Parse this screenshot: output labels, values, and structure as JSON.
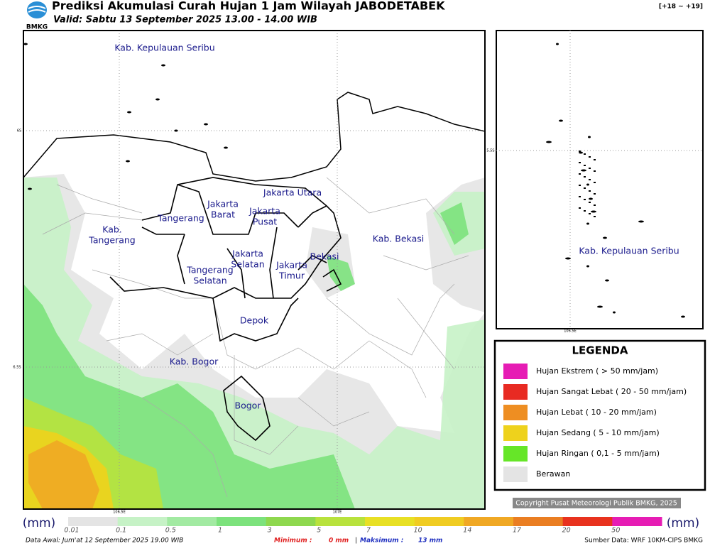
{
  "header": {
    "logo": "BMKG",
    "title": "Prediksi Akumulasi Curah Hujan 1 Jam Wilayah JABODETABEK",
    "valid": "Valid: Sabtu 13 September 2025 13.00 - 14.00 WIB",
    "range": "[+18 ~ +19]"
  },
  "map": {
    "labels": [
      {
        "lines": [
          "Kab. Kepulauan Seribu"
        ]
      },
      {
        "lines": [
          "Jakarta Utara"
        ]
      },
      {
        "lines": [
          "Jakarta",
          "Barat"
        ]
      },
      {
        "lines": [
          "Jakarta",
          "Pusat"
        ]
      },
      {
        "lines": [
          "Tangerang"
        ]
      },
      {
        "lines": [
          "Kab.",
          "Tangerang"
        ]
      },
      {
        "lines": [
          "Jakarta",
          "Selatan"
        ]
      },
      {
        "lines": [
          "Jakarta",
          "Timur"
        ]
      },
      {
        "lines": [
          "Tangerang",
          "Selatan"
        ]
      },
      {
        "lines": [
          "Bekasi"
        ]
      },
      {
        "lines": [
          "Kab. Bekasi"
        ]
      },
      {
        "lines": [
          "Depok"
        ]
      },
      {
        "lines": [
          "Kab. Bogor"
        ]
      },
      {
        "lines": [
          "Bogor"
        ]
      }
    ],
    "lat_labels": [
      "6S",
      "6.5S"
    ],
    "lon_labels": [
      "106.5E",
      "107E"
    ]
  },
  "inset": {
    "label": "Kab. Kepulauan Seribu",
    "lat_label": "5.5S",
    "lon_label": "106.5E"
  },
  "legend": {
    "title": "LEGENDA",
    "items": [
      {
        "label": "Hujan Ekstrem ( > 50 mm/jam)",
        "color": "#e61cb4"
      },
      {
        "label": "Hujan Sangat Lebat ( 20 - 50 mm/jam)",
        "color": "#e82a22"
      },
      {
        "label": "Hujan Lebat ( 10 - 20 mm/jam)",
        "color": "#ee8e22"
      },
      {
        "label": "Hujan Sedang ( 5 - 10 mm/jam)",
        "color": "#eed21c"
      },
      {
        "label": "Hujan Ringan ( 0,1 - 5 mm/jam)",
        "color": "#66e628"
      },
      {
        "label": "Berawan",
        "color": "#e4e4e4"
      }
    ]
  },
  "copyright": "Copyright Pusat Meteorologi Publik BMKG, 2025",
  "colorbar": {
    "unit": "(mm)",
    "ticks": [
      "0.01",
      "0.1",
      "0.5",
      "1",
      "3",
      "5",
      "7",
      "10",
      "14",
      "17",
      "20",
      "50"
    ],
    "colors": [
      "#e4e4e4",
      "#c6f2c6",
      "#a2eaa2",
      "#7ce27c",
      "#8ed84e",
      "#b8e23c",
      "#e8e024",
      "#f0cc22",
      "#f0a824",
      "#ea7e22",
      "#e8321e",
      "#e61cb4"
    ]
  },
  "footer": {
    "data_awal": "Data Awal: Jum'at 12 September 2025 19.00 WIB",
    "min_label": "Minimum :",
    "min_value": "0 mm",
    "separator": "|",
    "max_label": "Maksimum :",
    "max_value": "13 mm",
    "source": "Sumber Data: WRF 10KM-CIPS BMKG"
  }
}
